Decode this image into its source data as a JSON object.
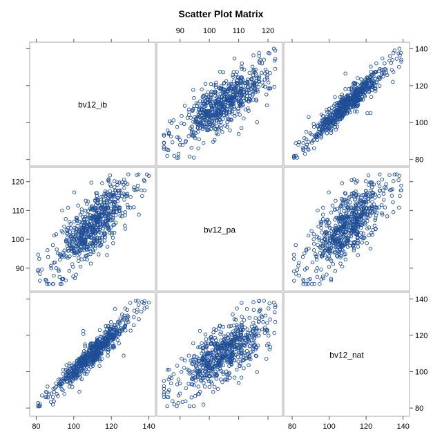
{
  "chart_data": {
    "type": "scatter",
    "title": "Scatter Plot Matrix",
    "variables": [
      "bv12_ib",
      "bv12_pa",
      "bv12_nat"
    ],
    "axes": {
      "bv12_ib": {
        "range": [
          78,
          142
        ],
        "ticks": [
          80,
          100,
          120,
          140
        ]
      },
      "bv12_pa": {
        "range": [
          83,
          124
        ],
        "ticks": [
          90,
          100,
          110,
          120
        ]
      },
      "bv12_nat": {
        "range": [
          77,
          142
        ],
        "ticks": [
          80,
          100,
          120,
          140
        ]
      }
    },
    "grid": false,
    "legend": "none",
    "marker": {
      "shape": "open-circle",
      "color": "#1f4e96"
    },
    "sample": {
      "bv12_ib": [
        82,
        85,
        88,
        90,
        92,
        95,
        97,
        98,
        100,
        101,
        103,
        104,
        105,
        106,
        107,
        108,
        110,
        111,
        112,
        113,
        115,
        116,
        118,
        120,
        122,
        125,
        128,
        132,
        136,
        140
      ],
      "bv12_pa": [
        88,
        86,
        90,
        92,
        89,
        94,
        96,
        99,
        97,
        101,
        100,
        104,
        103,
        102,
        106,
        105,
        108,
        107,
        110,
        106,
        112,
        109,
        111,
        114,
        113,
        116,
        115,
        118,
        117,
        122
      ],
      "bv12_nat": [
        82,
        86,
        88,
        91,
        93,
        96,
        98,
        99,
        101,
        102,
        103,
        106,
        104,
        107,
        108,
        110,
        109,
        112,
        113,
        111,
        116,
        115,
        119,
        121,
        120,
        124,
        127,
        130,
        133,
        138
      ]
    }
  }
}
